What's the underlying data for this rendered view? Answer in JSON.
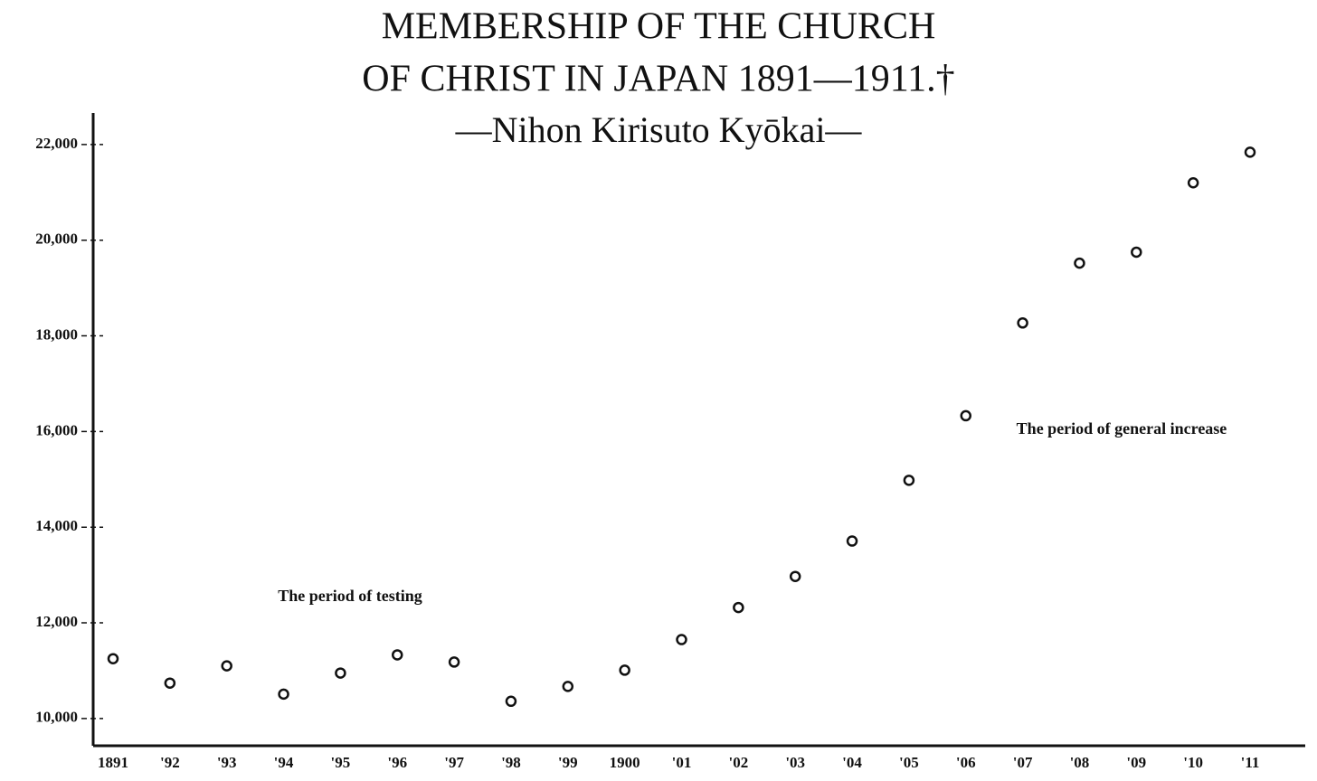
{
  "chart_data": {
    "type": "line",
    "title": [
      "MEMBERSHIP OF THE CHURCH",
      "OF CHRIST IN JAPAN 1891—1911.†"
    ],
    "subtitle": "—Nihon Kirisuto Kyōkai—",
    "categories": [
      "1891",
      "'92",
      "'93",
      "'94",
      "'95",
      "'96",
      "'97",
      "'98",
      "'99",
      "1900",
      "'01",
      "'02",
      "'03",
      "'04",
      "'05",
      "'06",
      "'07",
      "'08",
      "'09",
      "'10",
      "'11"
    ],
    "series": [
      {
        "name": "Membership",
        "color": "#111111",
        "values": [
          11250,
          10740,
          11100,
          10510,
          10950,
          11330,
          11180,
          10360,
          10670,
          11010,
          11650,
          12320,
          12970,
          13710,
          14980,
          16330,
          18270,
          19520,
          19750,
          21200,
          21840
        ]
      }
    ],
    "ylim": [
      9430,
      22660
    ],
    "yticks": [
      {
        "value": 10000,
        "label": "10,000"
      },
      {
        "value": 12000,
        "label": "12,000"
      },
      {
        "value": 14000,
        "label": "14,000"
      },
      {
        "value": 16000,
        "label": "16,000"
      },
      {
        "value": 18000,
        "label": "18,000"
      },
      {
        "value": 20000,
        "label": "20,000"
      },
      {
        "value": 22000,
        "label": "22,000"
      }
    ],
    "annotations": [
      "The period of testing",
      "The period of general increase"
    ],
    "line_style": "dashed"
  }
}
